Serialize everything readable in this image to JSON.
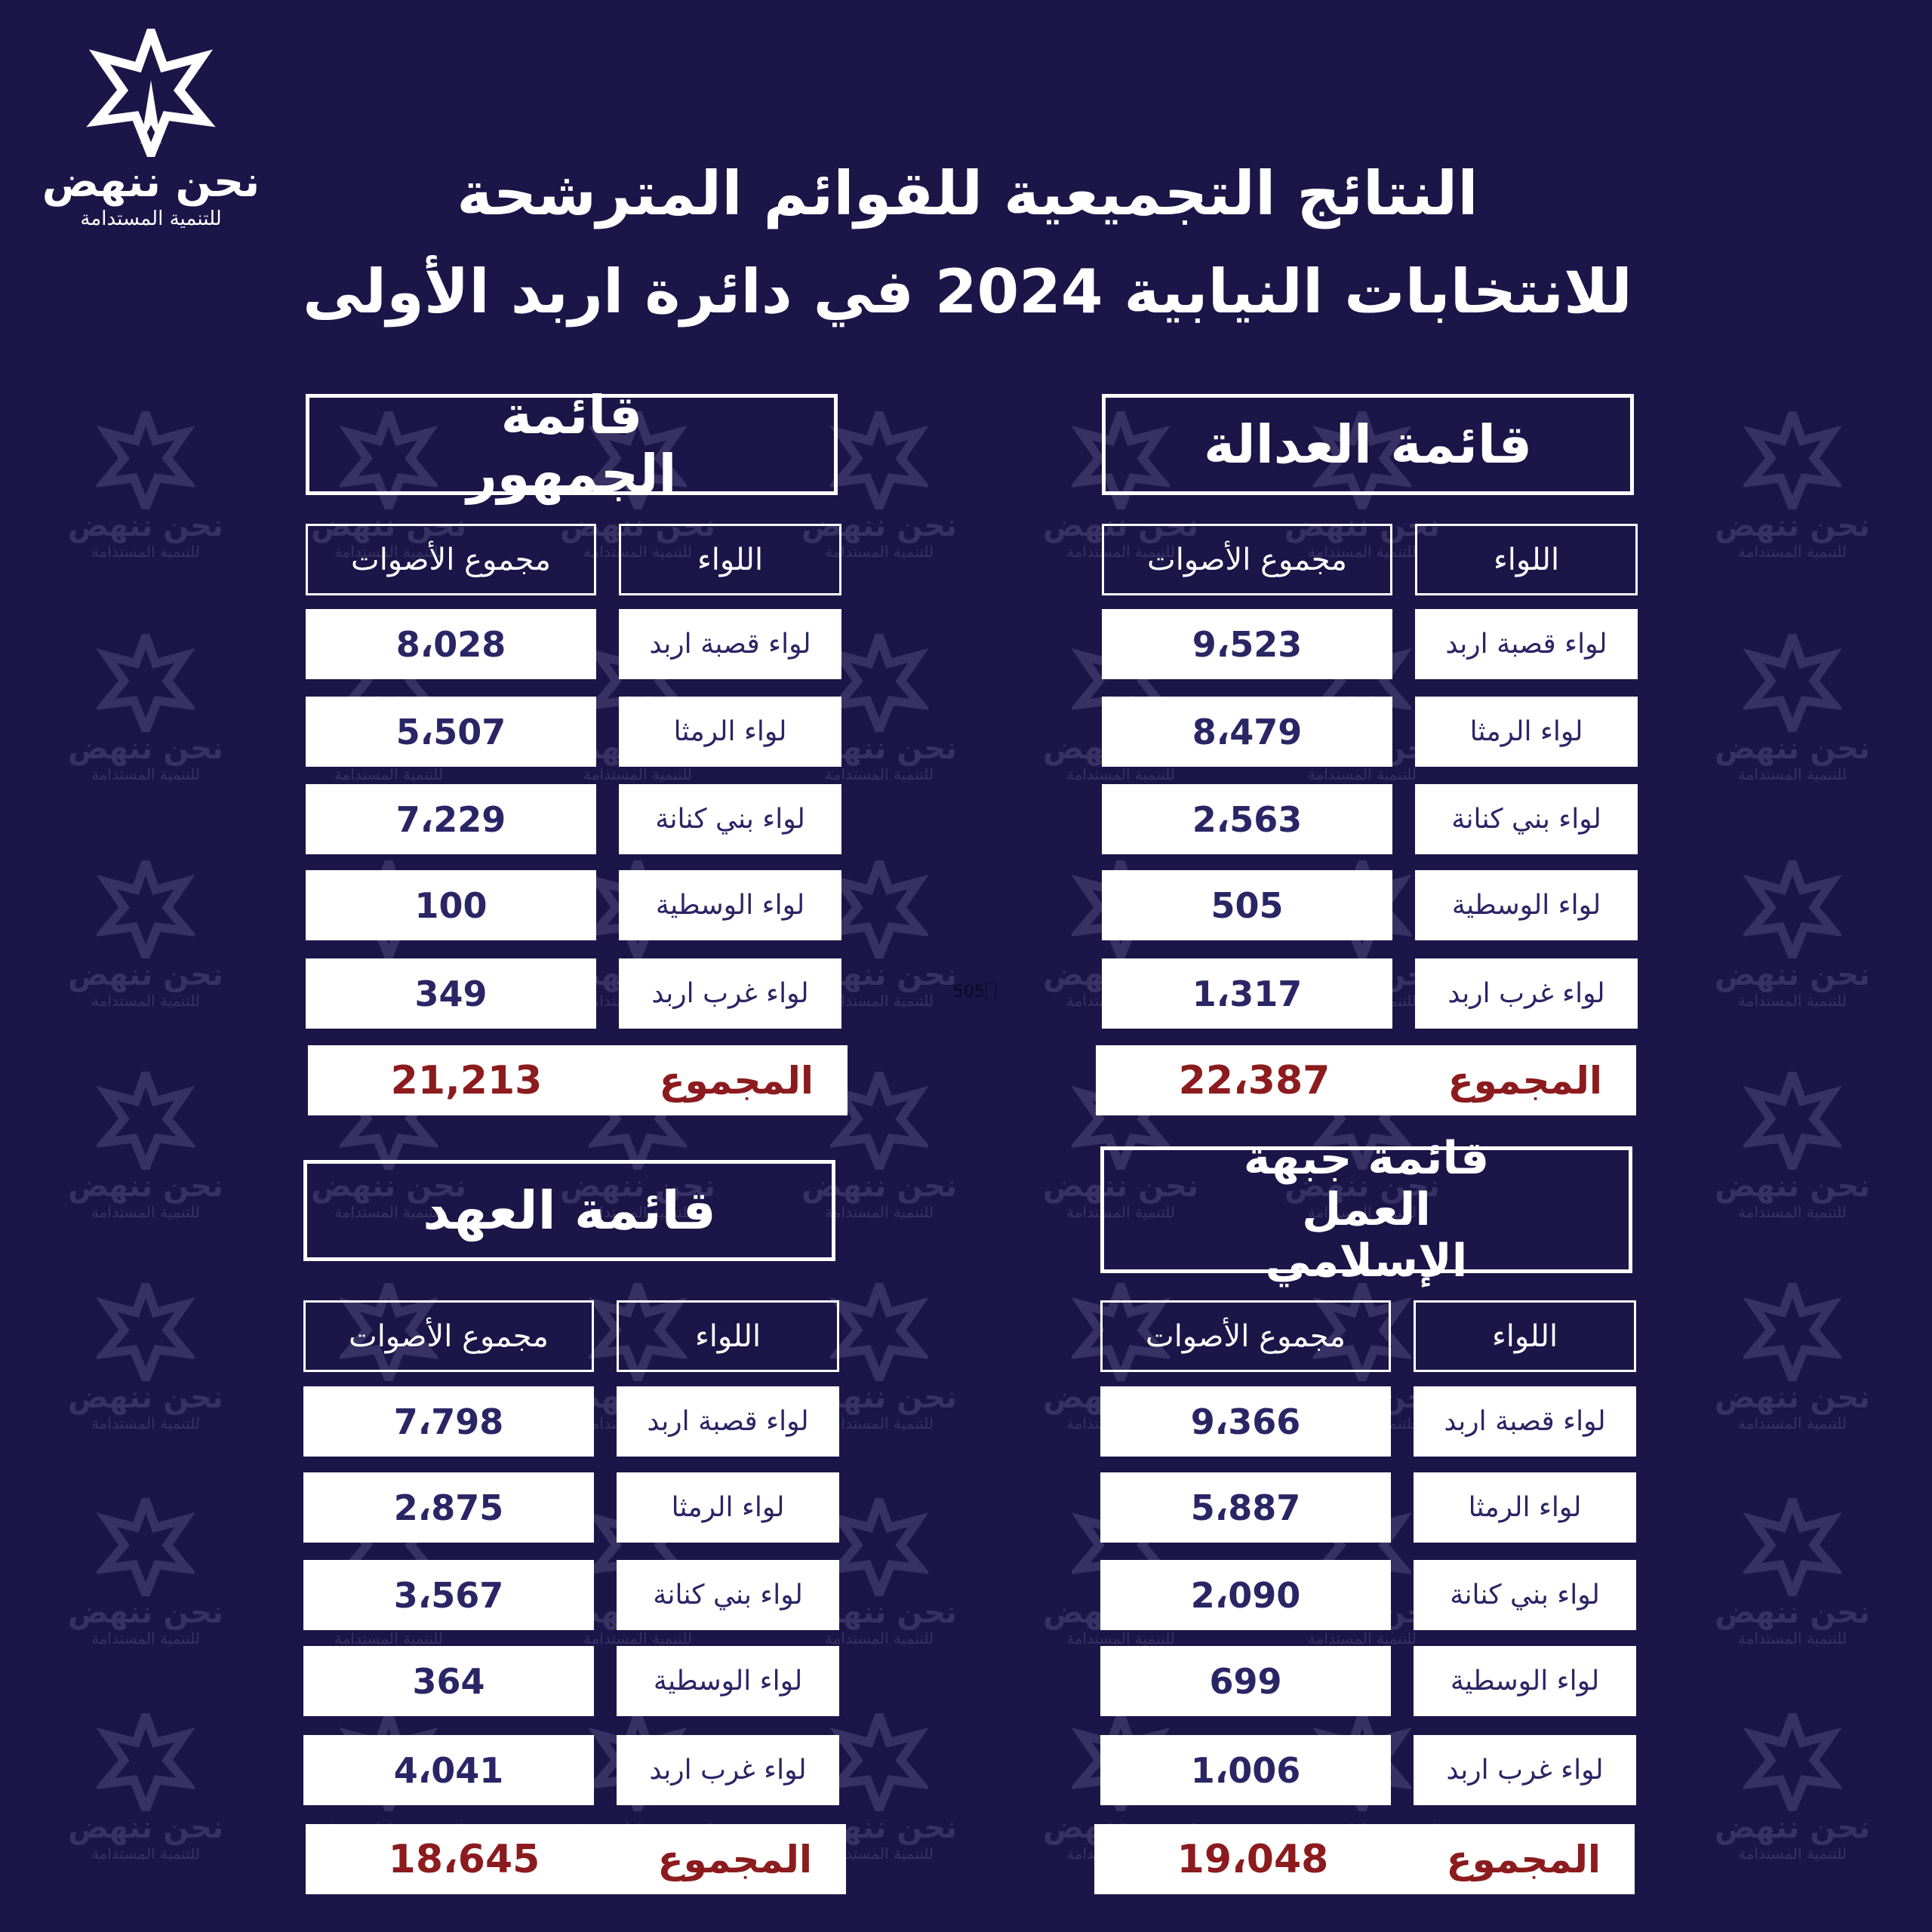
{
  "logo": {
    "name": "نحن ننهض",
    "tagline": "للتنمية المستدامة",
    "icon": "star-logo-icon"
  },
  "title": {
    "line1": "النتائج التجميعية للقوائم المترشحة",
    "line2": "للانتخابات النيابية 2024  في دائرة اربد الأولى"
  },
  "stray_text": "505",
  "colors": {
    "background": "#1b1548",
    "text": "#2a2565",
    "total": "#8c1b1e"
  },
  "headers": {
    "liwa": "اللواء",
    "votes": "مجموع الأصوات",
    "total": "المجموع"
  },
  "lists": [
    {
      "name": "قائمة العدالة",
      "rows": [
        {
          "liwa": "لواء قصبة اربد",
          "votes": "9،523"
        },
        {
          "liwa": "لواء الرمثا",
          "votes": "8،479"
        },
        {
          "liwa": "لواء بني كنانة",
          "votes": "2،563"
        },
        {
          "liwa": "لواء الوسطية",
          "votes": "505"
        },
        {
          "liwa": "لواء غرب اربد",
          "votes": "1،317"
        }
      ],
      "total": "22،387"
    },
    {
      "name": "قائمة الجمهور",
      "rows": [
        {
          "liwa": "لواء قصبة اربد",
          "votes": "8،028"
        },
        {
          "liwa": "لواء الرمثا",
          "votes": "5،507"
        },
        {
          "liwa": "لواء بني كنانة",
          "votes": "7،229"
        },
        {
          "liwa": "لواء الوسطية",
          "votes": "100"
        },
        {
          "liwa": "لواء غرب اربد",
          "votes": "349"
        }
      ],
      "total": "21,213"
    },
    {
      "name": "قائمة جبهة العمل الإسلامي",
      "rows": [
        {
          "liwa": "لواء قصبة اربد",
          "votes": "9،366"
        },
        {
          "liwa": "لواء الرمثا",
          "votes": "5،887"
        },
        {
          "liwa": "لواء بني كنانة",
          "votes": "2،090"
        },
        {
          "liwa": "لواء الوسطية",
          "votes": "699"
        },
        {
          "liwa": "لواء غرب اربد",
          "votes": "1،006"
        }
      ],
      "total": "19،048"
    },
    {
      "name": "قائمة العهد",
      "rows": [
        {
          "liwa": "لواء قصبة اربد",
          "votes": "7،798"
        },
        {
          "liwa": "لواء الرمثا",
          "votes": "2،875"
        },
        {
          "liwa": "لواء بني كنانة",
          "votes": "3،567"
        },
        {
          "liwa": "لواء الوسطية",
          "votes": "364"
        },
        {
          "liwa": "لواء غرب اربد",
          "votes": "4،041"
        }
      ],
      "total": "18،645"
    }
  ]
}
